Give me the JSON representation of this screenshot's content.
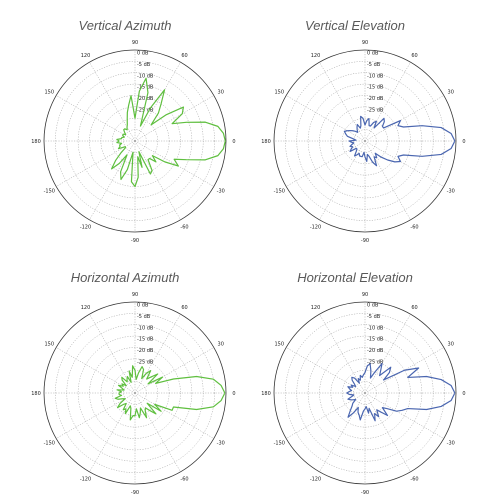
{
  "chart_data": [
    {
      "type": "polar",
      "title": "Vertical Azimuth",
      "color": "#5fbf3f",
      "angle_labels": [
        "0",
        "30",
        "60",
        "90",
        "120",
        "150",
        "180",
        "-150",
        "-120",
        "-90",
        "-60",
        "-30"
      ],
      "radial_labels": [
        "0 dB",
        "-5 dB",
        "-10 dB",
        "-15 dB",
        "-20 dB",
        "-25 dB"
      ],
      "rlim_db": [
        -40,
        0
      ],
      "grid": true,
      "series": [
        {
          "angle_deg": [
            0,
            5,
            10,
            15,
            20,
            25,
            30,
            35,
            40,
            45,
            50,
            55,
            60,
            65,
            70,
            75,
            80,
            85,
            90,
            95,
            100,
            105,
            110,
            115,
            120,
            125,
            130,
            135,
            140,
            145,
            150,
            155,
            160,
            165,
            170,
            175,
            180,
            185,
            190,
            195,
            200,
            205,
            210,
            215,
            220,
            225,
            230,
            235,
            240,
            245,
            250,
            255,
            260,
            265,
            270,
            275,
            280,
            285,
            290,
            295,
            300,
            305,
            310,
            315,
            320,
            325,
            330,
            335,
            340,
            345,
            350,
            355,
            360
          ],
          "gain_db": [
            -0.3,
            -1,
            -3,
            -8,
            -16,
            -22,
            -16,
            -14,
            -22,
            -30,
            -24,
            -20,
            -14,
            -24,
            -33,
            -18,
            -12,
            -18,
            -30,
            -20,
            -24,
            -27,
            -30,
            -32,
            -33,
            -34,
            -33,
            -33,
            -34,
            -35,
            -34,
            -34,
            -35,
            -34,
            -34,
            -32,
            -33,
            -32,
            -34,
            -33,
            -33,
            -32,
            -35,
            -35,
            -32,
            -28,
            -24,
            -28,
            -33,
            -25,
            -22,
            -27,
            -35,
            -22,
            -20,
            -24,
            -33,
            -28,
            -35,
            -24,
            -25,
            -30,
            -30,
            -27,
            -30,
            -24,
            -18,
            -21,
            -16,
            -8,
            -3,
            -1,
            -0.3
          ]
        }
      ]
    },
    {
      "type": "polar",
      "title": "Vertical Elevation",
      "color": "#4a66b0",
      "angle_labels": [
        "0",
        "30",
        "60",
        "90",
        "120",
        "150",
        "180",
        "-150",
        "-120",
        "-90",
        "-60",
        "-30"
      ],
      "radial_labels": [
        "0 dB",
        "-5 dB",
        "-10 dB",
        "-15 dB",
        "-20 dB",
        "-25 dB"
      ],
      "rlim_db": [
        -40,
        0
      ],
      "grid": true,
      "series": [
        {
          "angle_deg": [
            0,
            5,
            10,
            15,
            20,
            25,
            30,
            35,
            40,
            45,
            50,
            55,
            60,
            65,
            70,
            75,
            80,
            85,
            90,
            95,
            100,
            105,
            110,
            115,
            120,
            125,
            130,
            135,
            140,
            145,
            150,
            155,
            160,
            165,
            170,
            175,
            180,
            185,
            190,
            195,
            200,
            205,
            210,
            215,
            220,
            225,
            230,
            235,
            240,
            245,
            250,
            255,
            260,
            265,
            270,
            275,
            280,
            285,
            290,
            295,
            300,
            305,
            310,
            315,
            320,
            325,
            330,
            335,
            340,
            345,
            350,
            355,
            360
          ],
          "gain_db": [
            -0.5,
            -2,
            -6,
            -14,
            -22,
            -24,
            -22,
            -30,
            -30,
            -28,
            -27,
            -33,
            -30,
            -31,
            -33,
            -33,
            -30,
            -31,
            -33,
            -30,
            -29,
            -33,
            -34,
            -32,
            -33,
            -34,
            -35,
            -34,
            -33,
            -32,
            -31,
            -30,
            -31,
            -32,
            -35,
            -36,
            -33,
            -34,
            -35,
            -34,
            -33,
            -34,
            -33,
            -32,
            -35,
            -35,
            -34,
            -32,
            -33,
            -34,
            -33,
            -33,
            -33,
            -35,
            -33,
            -31,
            -34,
            -33,
            -30,
            -28,
            -32,
            -31,
            -33,
            -30,
            -27,
            -24,
            -22,
            -24,
            -22,
            -14,
            -6,
            -2,
            -0.5
          ]
        }
      ]
    },
    {
      "type": "polar",
      "title": "Horizontal Azimuth",
      "color": "#5fbf3f",
      "angle_labels": [
        "0",
        "30",
        "60",
        "90",
        "120",
        "150",
        "180",
        "-150",
        "-120",
        "-90",
        "-60",
        "-30"
      ],
      "radial_labels": [
        "0 dB",
        "-5 dB",
        "-10 dB",
        "-15 dB",
        "-20 dB",
        "-25 dB"
      ],
      "rlim_db": [
        -40,
        0
      ],
      "grid": true,
      "series": [
        {
          "angle_deg": [
            0,
            5,
            10,
            15,
            20,
            25,
            30,
            35,
            40,
            45,
            50,
            55,
            60,
            65,
            70,
            75,
            80,
            85,
            90,
            95,
            100,
            105,
            110,
            115,
            120,
            125,
            130,
            135,
            140,
            145,
            150,
            155,
            160,
            165,
            170,
            175,
            180,
            185,
            190,
            195,
            200,
            205,
            210,
            215,
            220,
            225,
            230,
            235,
            240,
            245,
            250,
            255,
            260,
            265,
            270,
            275,
            280,
            285,
            290,
            295,
            300,
            305,
            310,
            315,
            320,
            325,
            330,
            335,
            340,
            345,
            350,
            355,
            360
          ],
          "gain_db": [
            -0.5,
            -2,
            -5,
            -12,
            -22,
            -30,
            -26,
            -33,
            -27,
            -30,
            -32,
            -28,
            -30,
            -33,
            -29,
            -28,
            -31,
            -34,
            -30,
            -28,
            -33,
            -30,
            -35,
            -32,
            -33,
            -34,
            -31,
            -32,
            -35,
            -33,
            -34,
            -32,
            -34,
            -35,
            -32,
            -34,
            -33,
            -33,
            -34,
            -31,
            -32,
            -34,
            -35,
            -32,
            -30,
            -33,
            -34,
            -31,
            -32,
            -30,
            -34,
            -33,
            -28,
            -30,
            -30,
            -33,
            -29,
            -31,
            -33,
            -28,
            -31,
            -32,
            -30,
            -27,
            -33,
            -26,
            -30,
            -22,
            -22,
            -12,
            -5,
            -2,
            -0.5
          ]
        }
      ]
    },
    {
      "type": "polar",
      "title": "Horizontal Elevation",
      "color": "#4a66b0",
      "angle_labels": [
        "0",
        "30",
        "60",
        "90",
        "120",
        "150",
        "180",
        "-150",
        "-120",
        "-90",
        "-60",
        "-30"
      ],
      "radial_labels": [
        "0 dB",
        "-5 dB",
        "-10 dB",
        "-15 dB",
        "-20 dB",
        "-25 dB"
      ],
      "rlim_db": [
        -40,
        0
      ],
      "grid": true,
      "series": [
        {
          "angle_deg": [
            0,
            5,
            10,
            15,
            20,
            25,
            30,
            35,
            40,
            45,
            50,
            55,
            60,
            65,
            70,
            75,
            80,
            85,
            90,
            95,
            100,
            105,
            110,
            115,
            120,
            125,
            130,
            135,
            140,
            145,
            150,
            155,
            160,
            165,
            170,
            175,
            180,
            185,
            190,
            195,
            200,
            205,
            210,
            215,
            220,
            225,
            230,
            235,
            240,
            245,
            250,
            255,
            260,
            265,
            270,
            275,
            280,
            285,
            290,
            295,
            300,
            305,
            310,
            315,
            320,
            325,
            330,
            335,
            340,
            345,
            350,
            355,
            360
          ],
          "gain_db": [
            -0.5,
            -2,
            -6,
            -12,
            -20,
            -14,
            -20,
            -30,
            -26,
            -24,
            -30,
            -28,
            -25,
            -30,
            -33,
            -30,
            -27,
            -28,
            -31,
            -32,
            -33,
            -32,
            -34,
            -33,
            -35,
            -32,
            -31,
            -32,
            -34,
            -35,
            -33,
            -34,
            -32,
            -33,
            -34,
            -33,
            -32,
            -33,
            -35,
            -34,
            -32,
            -33,
            -34,
            -35,
            -33,
            -32,
            -30,
            -27,
            -30,
            -33,
            -31,
            -30,
            -28,
            -32,
            -33,
            -34,
            -31,
            -33,
            -27,
            -30,
            -28,
            -31,
            -29,
            -26,
            -30,
            -28,
            -24,
            -22,
            -20,
            -12,
            -6,
            -2,
            -0.5
          ]
        }
      ]
    }
  ]
}
